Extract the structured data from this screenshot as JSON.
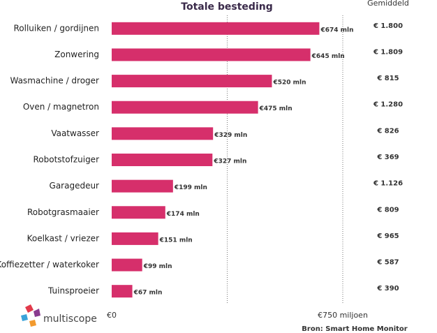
{
  "chart_data": {
    "type": "bar",
    "orientation": "horizontal",
    "title": "Totale besteding",
    "categories": [
      "Rolluiken / gordijnen",
      "Zonwering",
      "Wasmachine / droger",
      "Oven / magnetron",
      "Vaatwasser",
      "Robotstofzuiger",
      "Garagedeur",
      "Robotgrasmaaier",
      "Koelkast / vriezer",
      "Koffiezetter / waterkoker",
      "Tuinsproeier"
    ],
    "values": [
      674,
      645,
      520,
      475,
      329,
      327,
      199,
      174,
      151,
      99,
      67
    ],
    "value_labels": [
      "€674 mln",
      "€645 mln",
      "€520 mln",
      "€475 mln",
      "€329 mln",
      "€327 mln",
      "€199 mln",
      "€174 mln",
      "€151 mln",
      "€99 mln",
      "€67 mln"
    ],
    "color": "#d62f6b",
    "xlim": [
      0,
      750
    ],
    "xticks": [
      {
        "value": 0,
        "label": "€0"
      },
      {
        "value": 750,
        "label": "€750 miljoen"
      }
    ],
    "xgrid": [
      375,
      750
    ],
    "averages": {
      "name": "Gemiddeld",
      "values": [
        1800,
        1809,
        815,
        1280,
        826,
        369,
        1126,
        809,
        965,
        587,
        390
      ],
      "value_labels": [
        "€ 1.800",
        "€ 1.809",
        "€ 815",
        "€ 1.280",
        "€ 826",
        "€ 369",
        "€ 1.126",
        "€ 809",
        "€ 965",
        "€ 587",
        "€ 390"
      ]
    },
    "source": "Bron: Smart Home Monitor",
    "logo": "multiscope"
  }
}
